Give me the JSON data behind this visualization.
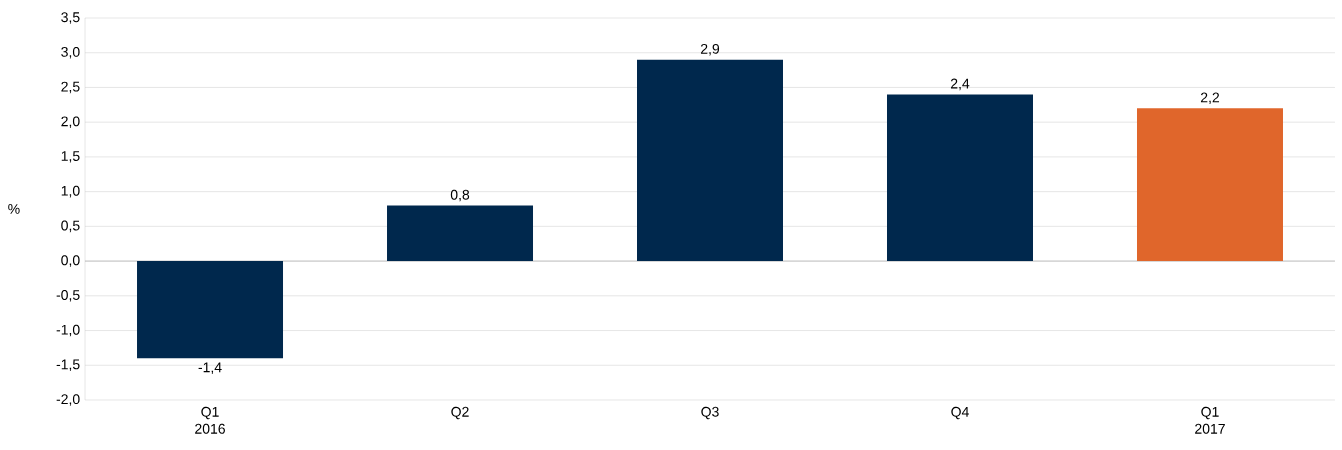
{
  "chart_data": {
    "type": "bar",
    "ylabel": "%",
    "categories": [
      "Q1 2016",
      "Q2",
      "Q3",
      "Q4",
      "Q1 2017"
    ],
    "values": [
      -1.4,
      0.8,
      2.9,
      2.4,
      2.2
    ],
    "colors": [
      "#00284d",
      "#00284d",
      "#00284d",
      "#00284d",
      "#e0662b"
    ],
    "value_labels": [
      "-1,4",
      "0,8",
      "2,9",
      "2,4",
      "2,2"
    ],
    "ylim": [
      -2,
      3.5
    ],
    "yticks": [
      {
        "value": -2,
        "label": "-2,0"
      },
      {
        "value": -1.5,
        "label": "-1,5"
      },
      {
        "value": -1,
        "label": "-1,0"
      },
      {
        "value": -0.5,
        "label": "-0,5"
      },
      {
        "value": 0,
        "label": "0,0"
      },
      {
        "value": 0.5,
        "label": "0,5"
      },
      {
        "value": 1,
        "label": "1,0"
      },
      {
        "value": 1.5,
        "label": "1,5"
      },
      {
        "value": 2,
        "label": "2,0"
      },
      {
        "value": 2.5,
        "label": "2,5"
      },
      {
        "value": 3,
        "label": "3,0"
      },
      {
        "value": 3.5,
        "label": "3,5"
      }
    ],
    "grid": "y"
  }
}
